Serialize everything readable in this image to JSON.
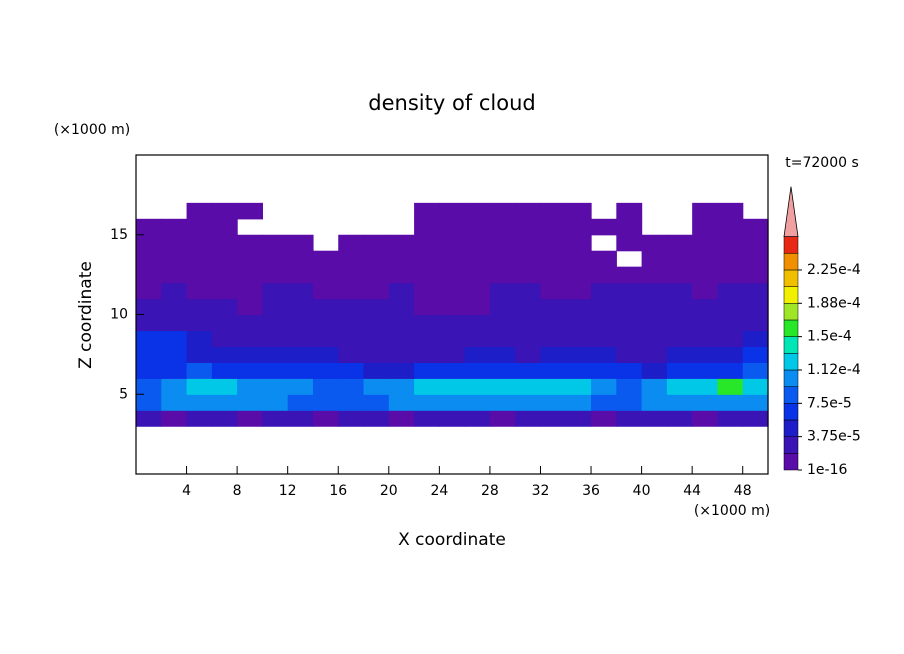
{
  "chart_data": {
    "type": "contour",
    "title": "density of cloud",
    "x_label": "X coordinate",
    "y_label": "Z coordinate",
    "x_unit": "(×1000 m)",
    "y_unit": "(×1000 m)",
    "annotation": "t=72000 s",
    "xlim": [
      0,
      50
    ],
    "ylim": [
      0,
      20
    ],
    "xticks": [
      4,
      8,
      12,
      16,
      20,
      24,
      28,
      32,
      36,
      40,
      44,
      48
    ],
    "yticks": [
      5,
      10,
      15
    ],
    "x": [
      1,
      3,
      5,
      7,
      9,
      11,
      13,
      15,
      17,
      19,
      21,
      23,
      25,
      27,
      29,
      31,
      33,
      35,
      37,
      39,
      41,
      43,
      45,
      47,
      49
    ],
    "z": [
      3.5,
      4.5,
      5.5,
      6.5,
      7.5,
      8.5,
      9.5,
      10.5,
      11.5,
      12.5,
      13.5,
      14.5,
      15.5,
      16.5
    ],
    "values": [
      [
        3e-05,
        1e-05,
        3e-05,
        3e-05,
        1e-05,
        3e-05,
        3e-05,
        1e-05,
        3e-05,
        3e-05,
        1e-05,
        3e-05,
        3e-05,
        3e-05,
        1e-05,
        3e-05,
        3e-05,
        3e-05,
        1e-05,
        3e-05,
        3e-05,
        3e-05,
        1e-05,
        3e-05,
        3e-05
      ],
      [
        9e-05,
        0.0001,
        0.0001,
        0.00011,
        0.0001,
        0.0001,
        9e-05,
        9e-05,
        8e-05,
        9e-05,
        0.0001,
        0.0001,
        0.00011,
        0.0001,
        0.00011,
        0.0001,
        0.00011,
        0.0001,
        9e-05,
        9e-05,
        0.0001,
        0.0001,
        0.00011,
        0.00011,
        0.0001
      ],
      [
        8e-05,
        0.0001,
        0.00012,
        0.00012,
        0.00011,
        0.0001,
        0.0001,
        9e-05,
        9e-05,
        0.0001,
        0.00011,
        0.00012,
        0.00012,
        0.00013,
        0.00012,
        0.00013,
        0.00013,
        0.00012,
        0.00011,
        9e-05,
        0.0001,
        0.00012,
        0.00013,
        0.00016,
        0.00012
      ],
      [
        6e-05,
        6e-05,
        8e-05,
        6e-05,
        6e-05,
        6e-05,
        6e-05,
        6e-05,
        6e-05,
        4e-05,
        4e-05,
        6e-05,
        6e-05,
        6e-05,
        6e-05,
        6e-05,
        6e-05,
        6e-05,
        6e-05,
        6e-05,
        4e-05,
        6e-05,
        6e-05,
        6e-05,
        8e-05
      ],
      [
        6e-05,
        6e-05,
        4e-05,
        4e-05,
        4e-05,
        4e-05,
        4e-05,
        4e-05,
        3e-05,
        3e-05,
        3e-05,
        3e-05,
        3e-05,
        4e-05,
        4e-05,
        3e-05,
        4e-05,
        4e-05,
        4e-05,
        3e-05,
        3e-05,
        4e-05,
        4e-05,
        4e-05,
        6e-05
      ],
      [
        6e-05,
        6e-05,
        4e-05,
        3e-05,
        3e-05,
        2e-05,
        2e-05,
        3e-05,
        2e-05,
        2e-05,
        2e-05,
        2e-05,
        2e-05,
        2e-05,
        2e-05,
        2e-05,
        2e-05,
        2e-05,
        2e-05,
        2e-05,
        3e-05,
        3e-05,
        2e-05,
        3e-05,
        4e-05
      ],
      [
        3e-05,
        2e-05,
        2e-05,
        2e-05,
        2e-05,
        2e-05,
        2e-05,
        2e-05,
        2e-05,
        2e-05,
        2e-05,
        2e-05,
        2e-05,
        2e-05,
        2e-05,
        2e-05,
        2e-05,
        2e-05,
        2e-05,
        2e-05,
        2e-05,
        2e-05,
        2e-05,
        2e-05,
        2e-05
      ],
      [
        2e-05,
        2e-05,
        2e-05,
        2e-05,
        1e-05,
        2e-05,
        2e-05,
        2e-05,
        2e-05,
        2e-05,
        2e-05,
        1e-05,
        1e-05,
        1e-05,
        2e-05,
        2e-05,
        2e-05,
        2e-05,
        2e-05,
        2e-05,
        2e-05,
        2e-05,
        2e-05,
        2e-05,
        2e-05
      ],
      [
        1e-05,
        2e-05,
        1e-05,
        1e-05,
        1e-05,
        2e-05,
        2e-05,
        1e-05,
        1e-05,
        1e-05,
        2e-05,
        1e-05,
        1e-05,
        1e-05,
        2e-05,
        2e-05,
        1e-05,
        1e-05,
        2e-05,
        2e-05,
        2e-05,
        2e-05,
        1e-05,
        2e-05,
        2e-05
      ],
      [
        1e-05,
        1e-05,
        1e-05,
        1e-05,
        1e-05,
        1e-05,
        1e-05,
        1e-05,
        1e-05,
        1e-05,
        1e-05,
        1e-05,
        1e-05,
        1e-05,
        1e-05,
        1e-05,
        1e-05,
        1e-05,
        1e-05,
        1e-05,
        1e-05,
        1e-05,
        1e-05,
        1e-05,
        1e-05
      ],
      [
        1e-05,
        1e-05,
        1e-05,
        1e-05,
        1e-05,
        1e-05,
        1e-05,
        1e-05,
        1e-05,
        1e-05,
        1e-05,
        1e-05,
        1e-05,
        1e-05,
        1e-05,
        1e-05,
        1e-05,
        1e-05,
        1e-05,
        null,
        1e-05,
        1e-05,
        1e-05,
        1e-05,
        1e-05
      ],
      [
        1e-05,
        1e-05,
        1e-05,
        1e-05,
        1e-05,
        1e-05,
        1e-05,
        null,
        1e-05,
        1e-05,
        1e-05,
        1e-05,
        1e-05,
        1e-05,
        1e-05,
        1e-05,
        1e-05,
        1e-05,
        null,
        1e-05,
        1e-05,
        1e-05,
        1e-05,
        1e-05,
        1e-05
      ],
      [
        1e-05,
        1e-05,
        1e-05,
        1e-05,
        null,
        null,
        null,
        null,
        null,
        null,
        null,
        1e-05,
        1e-05,
        1e-05,
        1e-05,
        1e-05,
        1e-05,
        1e-05,
        1e-05,
        1e-05,
        null,
        null,
        1e-05,
        1e-05,
        1e-05
      ],
      [
        null,
        null,
        1e-05,
        1e-05,
        1e-05,
        null,
        null,
        null,
        null,
        null,
        null,
        1e-05,
        1e-05,
        1e-05,
        1e-05,
        1e-05,
        1e-05,
        1e-05,
        null,
        1e-05,
        null,
        null,
        1e-05,
        1e-05,
        null
      ]
    ],
    "levels": [
      1e-16,
      1.875e-05,
      3.75e-05,
      5.625e-05,
      7.5e-05,
      9.375e-05,
      0.0001125,
      0.00013125,
      0.00015,
      0.00016875,
      0.0001875,
      0.00020625,
      0.000225,
      0.00024375
    ],
    "colors": [
      "#5a0ca8",
      "#3a14b4",
      "#1e1ec8",
      "#0a32e6",
      "#0a5af0",
      "#0a8cf0",
      "#00c8e6",
      "#00e6b4",
      "#28e628",
      "#a0e628",
      "#f0f000",
      "#f0c000",
      "#f09000",
      "#e62814"
    ],
    "extend_color": "#f0a0a0",
    "colorbar_ticks": [
      1e-16,
      {
        "value": 3.75e-05,
        "label": "3.75e-5"
      },
      {
        "value": 7.5e-05,
        "label": "7.5e-5"
      },
      {
        "value": 0.0001125,
        "label": "1.12e-4"
      },
      {
        "value": 0.00015,
        "label": "1.5e-4"
      },
      {
        "value": 0.0001875,
        "label": "1.88e-4"
      },
      {
        "value": 0.000225,
        "label": "2.25e-4"
      }
    ]
  }
}
